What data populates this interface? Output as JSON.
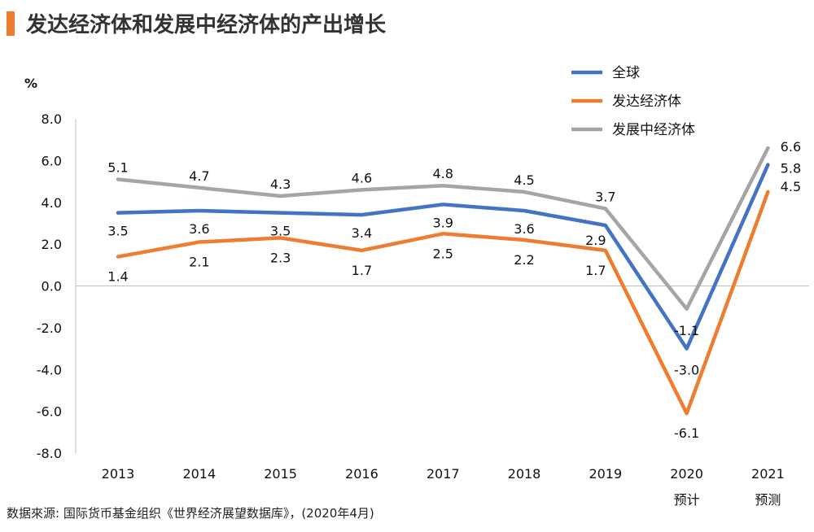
{
  "title": "发达经济体和发展中经济体的产出增长",
  "source": "数据來源: 国际货币基金组织《世界经济展望数据库》，(2020年4月)",
  "chart_data": {
    "type": "line",
    "title": "发达经济体和发展中经济体的产出增长",
    "ylabel": "%",
    "xlabel": "",
    "ylim": [
      -8.0,
      8.0
    ],
    "y_ticks": [
      "8.0",
      "6.0",
      "4.0",
      "2.0",
      "0.0",
      "-2.0",
      "-4.0",
      "-6.0",
      "-8.0"
    ],
    "categories": [
      "2013",
      "2014",
      "2015",
      "2016",
      "2017",
      "2018",
      "2019",
      "2020",
      "2021"
    ],
    "category_sublabels": [
      "",
      "",
      "",
      "",
      "",
      "",
      "",
      "预计",
      "预测"
    ],
    "legend_position": "top-right",
    "series": [
      {
        "name": "全球",
        "color": "#4472c4",
        "values": [
          3.5,
          3.6,
          3.5,
          3.4,
          3.9,
          3.6,
          2.9,
          -3.0,
          5.8
        ],
        "labels": [
          "3.5",
          "3.6",
          "3.5",
          "3.4",
          "3.9",
          "3.6",
          "2.9",
          "-3.0",
          "5.8"
        ]
      },
      {
        "name": "发达经济体",
        "color": "#ed7d31",
        "values": [
          1.4,
          2.1,
          2.3,
          1.7,
          2.5,
          2.2,
          1.7,
          -6.1,
          4.5
        ],
        "labels": [
          "1.4",
          "2.1",
          "2.3",
          "1.7",
          "2.5",
          "2.2",
          "1.7",
          "-6.1",
          "4.5"
        ]
      },
      {
        "name": "发展中经济体",
        "color": "#a5a5a5",
        "values": [
          5.1,
          4.7,
          4.3,
          4.6,
          4.8,
          4.5,
          3.7,
          -1.1,
          6.6
        ],
        "labels": [
          "5.1",
          "4.7",
          "4.3",
          "4.6",
          "4.8",
          "4.5",
          "3.7",
          "-1.1",
          "6.6"
        ]
      }
    ]
  }
}
